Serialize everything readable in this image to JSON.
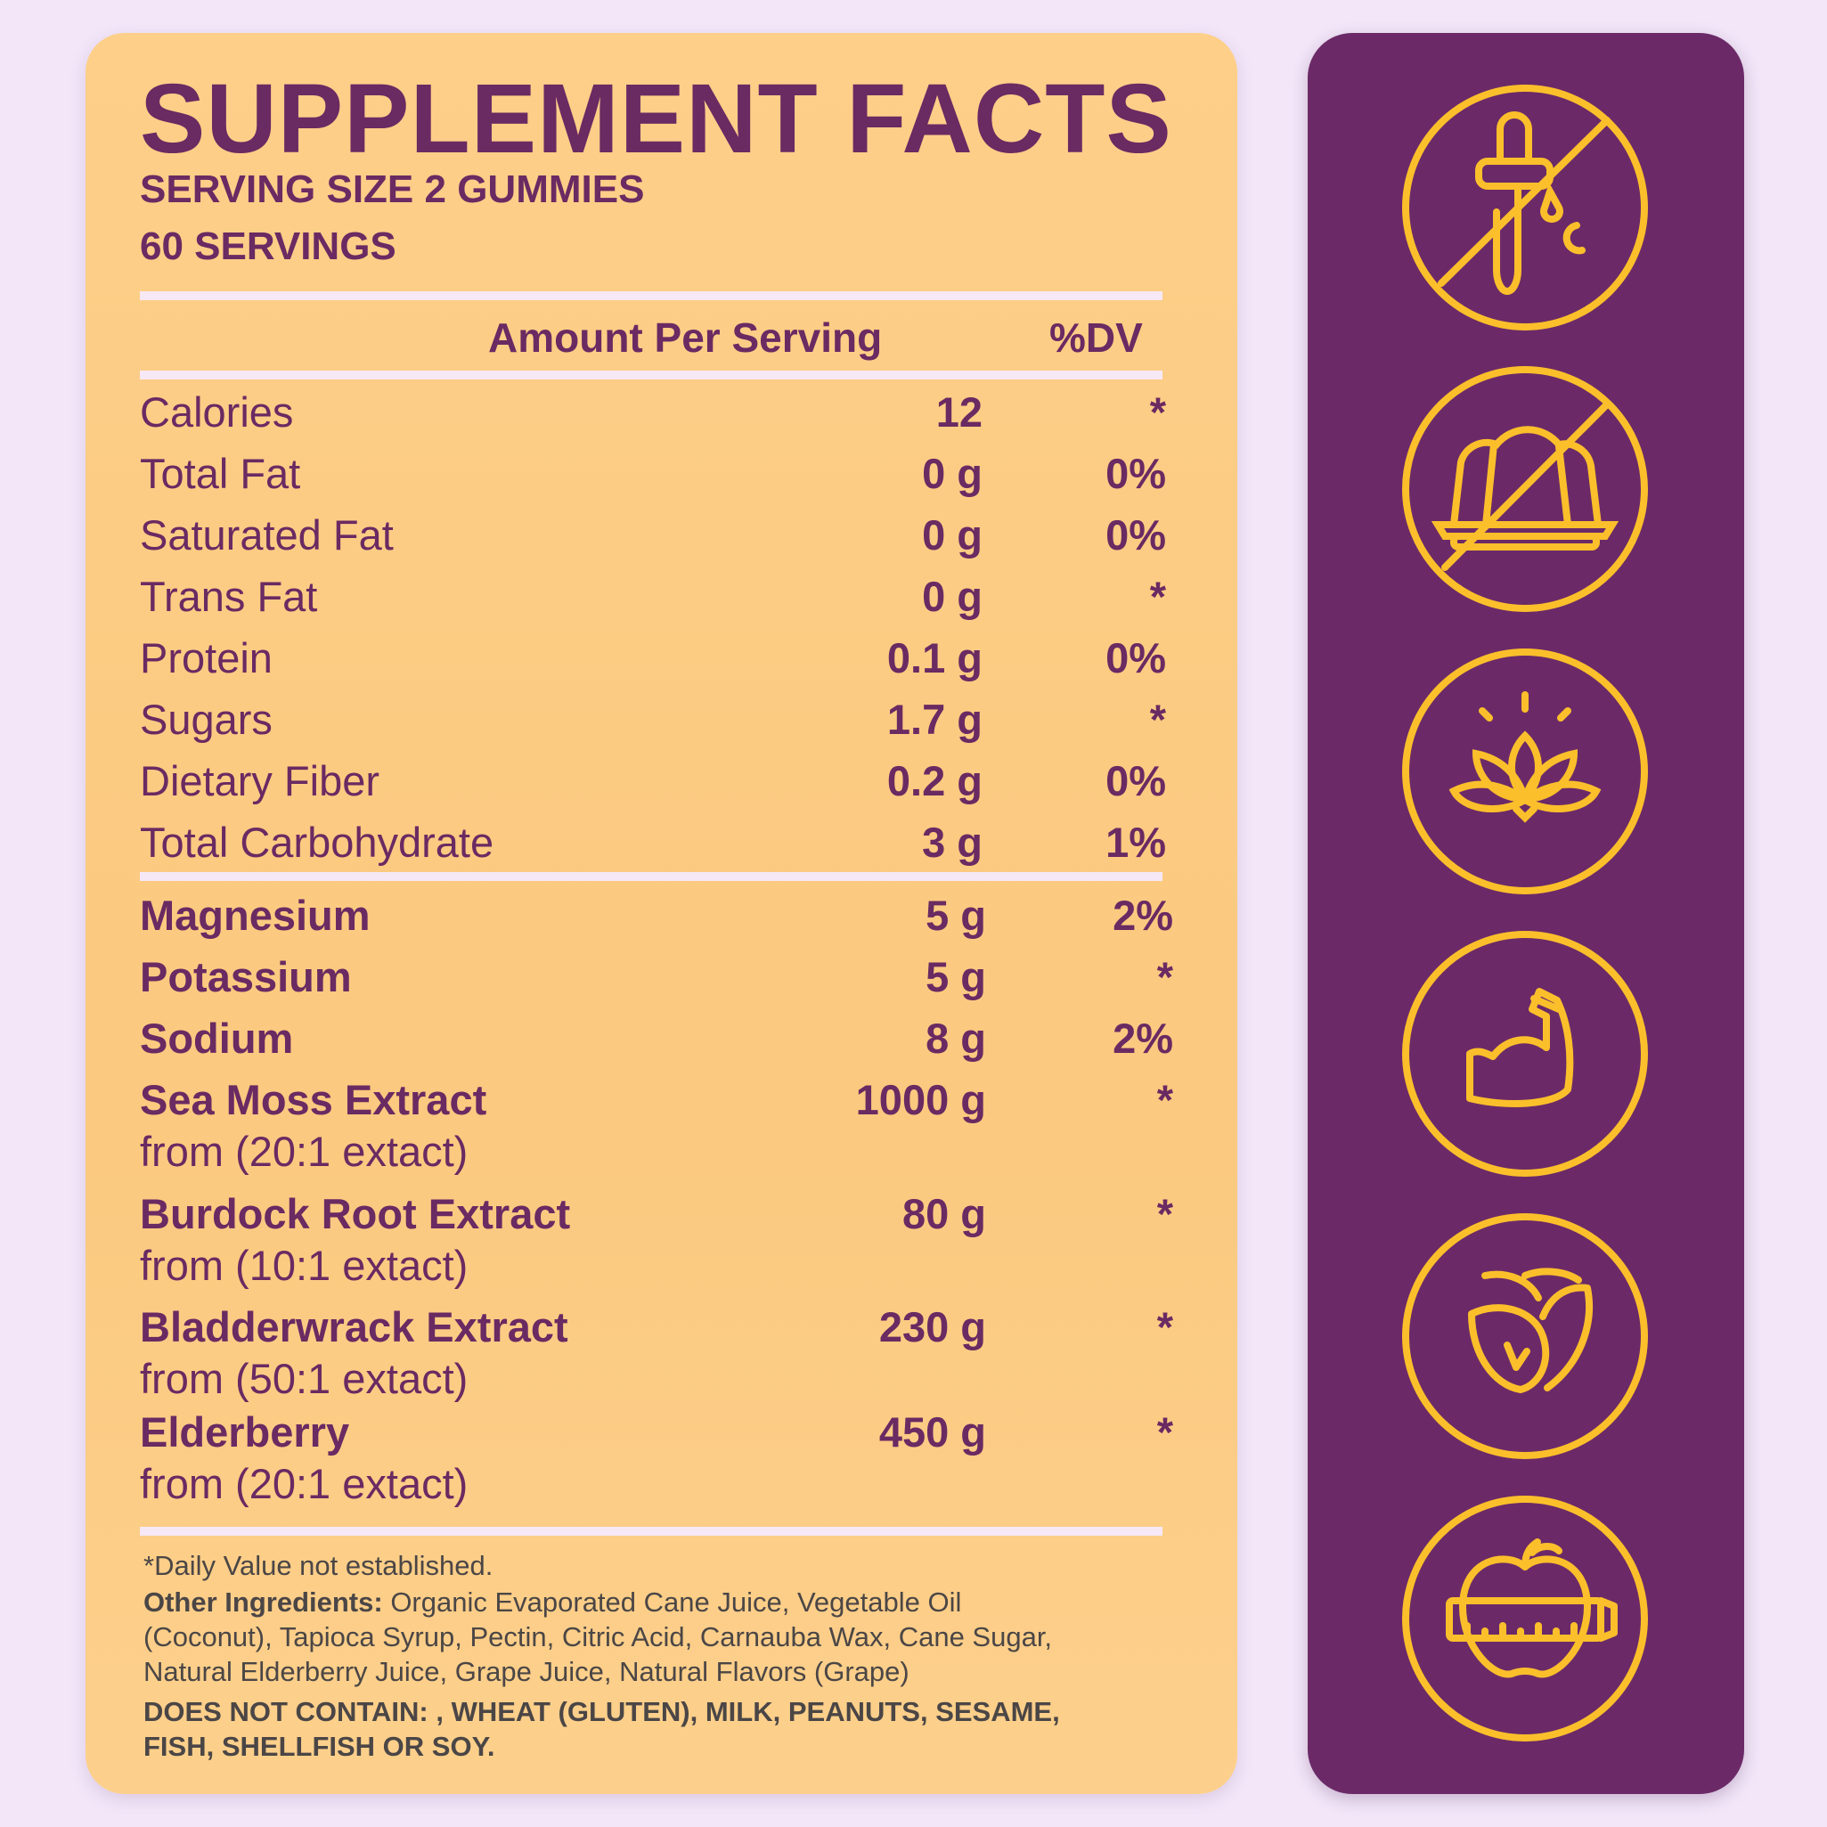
{
  "title": "SUPPLEMENT FACTS",
  "serving_size": "SERVING SIZE 2 GUMMIES",
  "servings": "60 SERVINGS",
  "header": {
    "amount": "Amount Per Serving",
    "dv": "%DV"
  },
  "nutrients": [
    {
      "name": "Calories",
      "amount": "12",
      "dv": "*"
    },
    {
      "name": "Total Fat",
      "amount": "0 g",
      "dv": "0%"
    },
    {
      "name": "Saturated Fat",
      "amount": "0 g",
      "dv": "0%"
    },
    {
      "name": "Trans Fat",
      "amount": "0 g",
      "dv": "*"
    },
    {
      "name": "Protein",
      "amount": "0.1 g",
      "dv": "0%"
    },
    {
      "name": "Sugars",
      "amount": "1.7 g",
      "dv": "*"
    },
    {
      "name": "Dietary Fiber",
      "amount": "0.2 g",
      "dv": "0%"
    },
    {
      "name": "Total Carbohydrate",
      "amount": "3 g",
      "dv": "1%"
    }
  ],
  "ingredients": [
    {
      "name": "Magnesium",
      "amount": "5 g",
      "dv": "2%"
    },
    {
      "name": "Potassium",
      "amount": "5 g",
      "dv": "*"
    },
    {
      "name": "Sodium",
      "amount": "8 g",
      "dv": "2%"
    },
    {
      "name": "Sea Moss Extract",
      "amount": "1000 g",
      "dv": "*",
      "source": "from (20:1 extact)"
    },
    {
      "name": "Burdock Root Extract",
      "amount": "80 g",
      "dv": "*",
      "source": "from (10:1 extact)"
    },
    {
      "name": "Bladderwrack Extract",
      "amount": "230 g",
      "dv": "*",
      "source": "from (50:1 extact)"
    },
    {
      "name": "Elderberry",
      "amount": "450 g",
      "dv": "*",
      "source": "from (20:1 extact)"
    }
  ],
  "footer": {
    "dv_note": "*Daily Value not established.",
    "other_label": "Other Ingredients:",
    "other_line1": " Organic Evaporated Cane Juice, Vegetable Oil",
    "other_line2": "(Coconut), Tapioca Syrup, Pectin, Citric Acid, Carnauba Wax, Cane Sugar,",
    "other_line3": "Natural Elderberry Juice, Grape Juice, Natural Flavors (Grape)",
    "not_contain_line1": "DOES NOT CONTAIN: , WHEAT (GLUTEN), MILK, PEANUTS, SESAME,",
    "not_contain_line2": "FISH, SHELLFISH OR SOY."
  },
  "icons": [
    "no-dropper-icon",
    "no-gelatin-icon",
    "lotus-icon",
    "muscle-arm-icon",
    "leaves-icon",
    "apple-measuring-tape-icon"
  ],
  "colors": {
    "background": "#f2e6f8",
    "card": "#fcce88",
    "text": "#6a2a62",
    "panel": "#6b2a67",
    "icon": "#fbbf2b"
  }
}
